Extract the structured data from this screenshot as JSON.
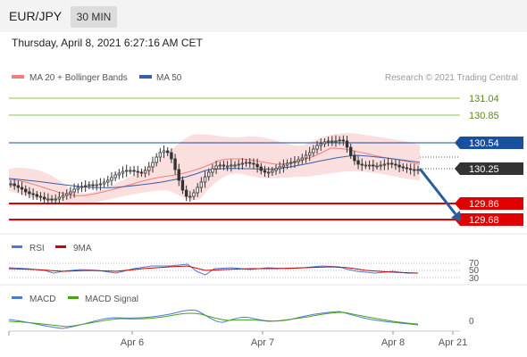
{
  "header": {
    "symbol": "EUR/JPY",
    "interval": "30 MIN"
  },
  "datetime": "Thursday, April 8, 2021 6:27:16 AM CET",
  "legend": {
    "bollinger": "MA 20 + Bollinger Bands",
    "ma50": "MA 50"
  },
  "watermark": "Research © 2021 Trading Central",
  "colors": {
    "candle": "#333333",
    "ma20": "#f08080",
    "bollinger_fill": "#fbdada",
    "ma50": "#3a5fa8",
    "green_level": "#8dc63f",
    "blue_level": "#1a4fa0",
    "red_level": "#e00000",
    "current_price_tag": "#333333",
    "arrow": "#2b5c9e",
    "rsi": "#4a7ad6",
    "rsi_ma": "#d00000",
    "macd": "#4a7ad6",
    "macd_signal": "#48a21a"
  },
  "chart_data": {
    "type": "candlestick",
    "x_ticks": [
      "Apr 6",
      "Apr 7",
      "Apr 8",
      "Apr 21"
    ],
    "current_price": 130.25,
    "levels": [
      {
        "value": 131.04,
        "kind": "resistance",
        "label": "131.04"
      },
      {
        "value": 130.85,
        "kind": "resistance",
        "label": "130.85"
      },
      {
        "value": 130.54,
        "kind": "pivot",
        "label": "130.54"
      },
      {
        "value": 129.86,
        "kind": "support",
        "label": "129.86"
      },
      {
        "value": 129.68,
        "kind": "support",
        "label": "129.68"
      }
    ],
    "current_label": "130.25",
    "close_series": [
      130.08,
      130.06,
      130.04,
      130.02,
      129.99,
      129.97,
      129.96,
      129.94,
      129.93,
      129.91,
      129.91,
      129.9,
      129.91,
      129.93,
      129.95,
      129.97,
      129.99,
      130.02,
      130.04,
      130.05,
      130.06,
      130.07,
      130.06,
      130.07,
      130.08,
      130.1,
      130.12,
      130.15,
      130.18,
      130.2,
      130.22,
      130.23,
      130.23,
      130.22,
      130.21,
      130.2,
      130.23,
      130.27,
      130.32,
      130.38,
      130.43,
      130.45,
      130.43,
      130.36,
      130.24,
      130.12,
      130.01,
      129.94,
      129.94,
      129.98,
      130.04,
      130.1,
      130.16,
      130.21,
      130.25,
      130.28,
      130.29,
      130.28,
      130.28,
      130.29,
      130.29,
      130.3,
      130.31,
      130.32,
      130.31,
      130.3,
      130.27,
      130.23,
      130.21,
      130.21,
      130.23,
      130.25,
      130.27,
      130.29,
      130.31,
      130.32,
      130.33,
      130.35,
      130.37,
      130.4,
      130.43,
      130.47,
      130.51,
      130.53,
      130.55,
      130.56,
      130.56,
      130.56,
      130.57,
      130.56,
      130.49,
      130.4,
      130.34,
      130.3,
      130.29,
      130.29,
      130.29,
      130.28,
      130.28,
      130.29,
      130.3,
      130.31,
      130.3,
      130.29,
      130.27,
      130.26,
      130.25,
      130.24,
      130.23,
      130.24
    ],
    "rsi": {
      "label": "RSI",
      "ma_label": "9MA",
      "levels": [
        "70",
        "50",
        "30"
      ]
    },
    "macd": {
      "label": "MACD",
      "signal_label": "MACD Signal",
      "zero_label": "0"
    }
  }
}
